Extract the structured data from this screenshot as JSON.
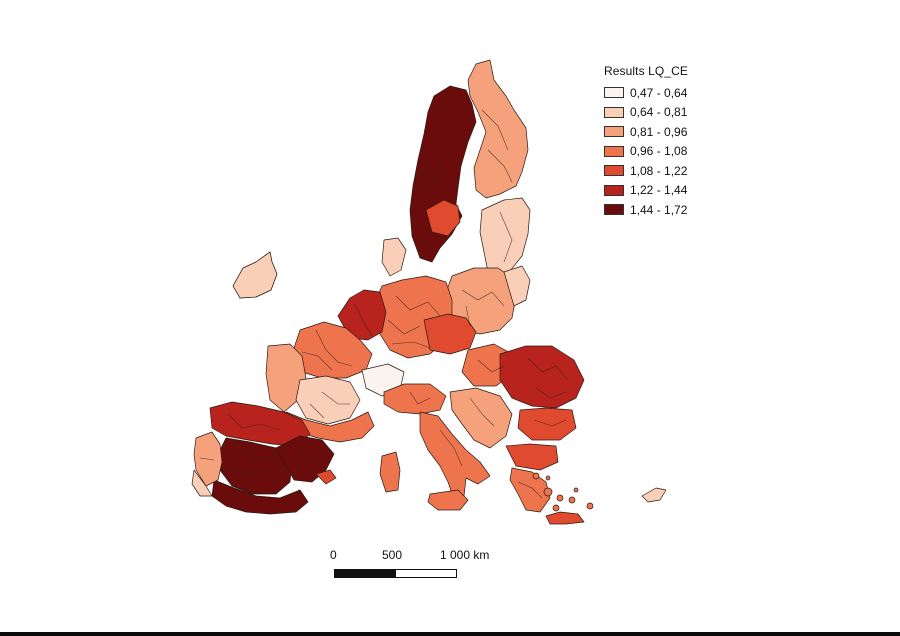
{
  "legend": {
    "title": "Results LQ_CE",
    "classes": [
      {
        "label": "0,47 - 0,64",
        "color": "#fbf3ee"
      },
      {
        "label": "0,64 - 0,81",
        "color": "#f9cfb8"
      },
      {
        "label": "0,81 - 0,96",
        "color": "#f4a17c"
      },
      {
        "label": "0,96 - 1,08",
        "color": "#ee744e"
      },
      {
        "label": "1,08 - 1,22",
        "color": "#e04a2e"
      },
      {
        "label": "1,22 - 1,44",
        "color": "#b8231d"
      },
      {
        "label": "1,44 - 1,72",
        "color": "#6a0c0b"
      }
    ]
  },
  "scale_bar": {
    "labels": [
      "0",
      "500",
      "1 000 km"
    ]
  },
  "map": {
    "region_fill_classes": {
      "iceland": 1,
      "ireland": 1,
      "britain": 1,
      "norway_west": 1,
      "sweden_south": 4,
      "sweden": 6,
      "finland": 2,
      "baltics": 1,
      "poland": 2,
      "poland_east": 1,
      "germany": 3,
      "benelux": 5,
      "czech": 4,
      "france_north": 3,
      "france_west": 2,
      "france_central": 1,
      "france_south": 3,
      "alps": 0,
      "italy_north": 3,
      "italy_south": 3,
      "sardinia": 3,
      "sicily": 3,
      "balkans": 2,
      "hungary": 3,
      "romania": 5,
      "bulgaria": 4,
      "greece": 3,
      "greece_north": 4,
      "crete": 4,
      "cyprus": 1,
      "spain_north": 5,
      "spain_central": 6,
      "spain_east": 6,
      "spain_south": 6,
      "portugal": 2,
      "portugal_south": 1,
      "balearics": 4
    }
  }
}
